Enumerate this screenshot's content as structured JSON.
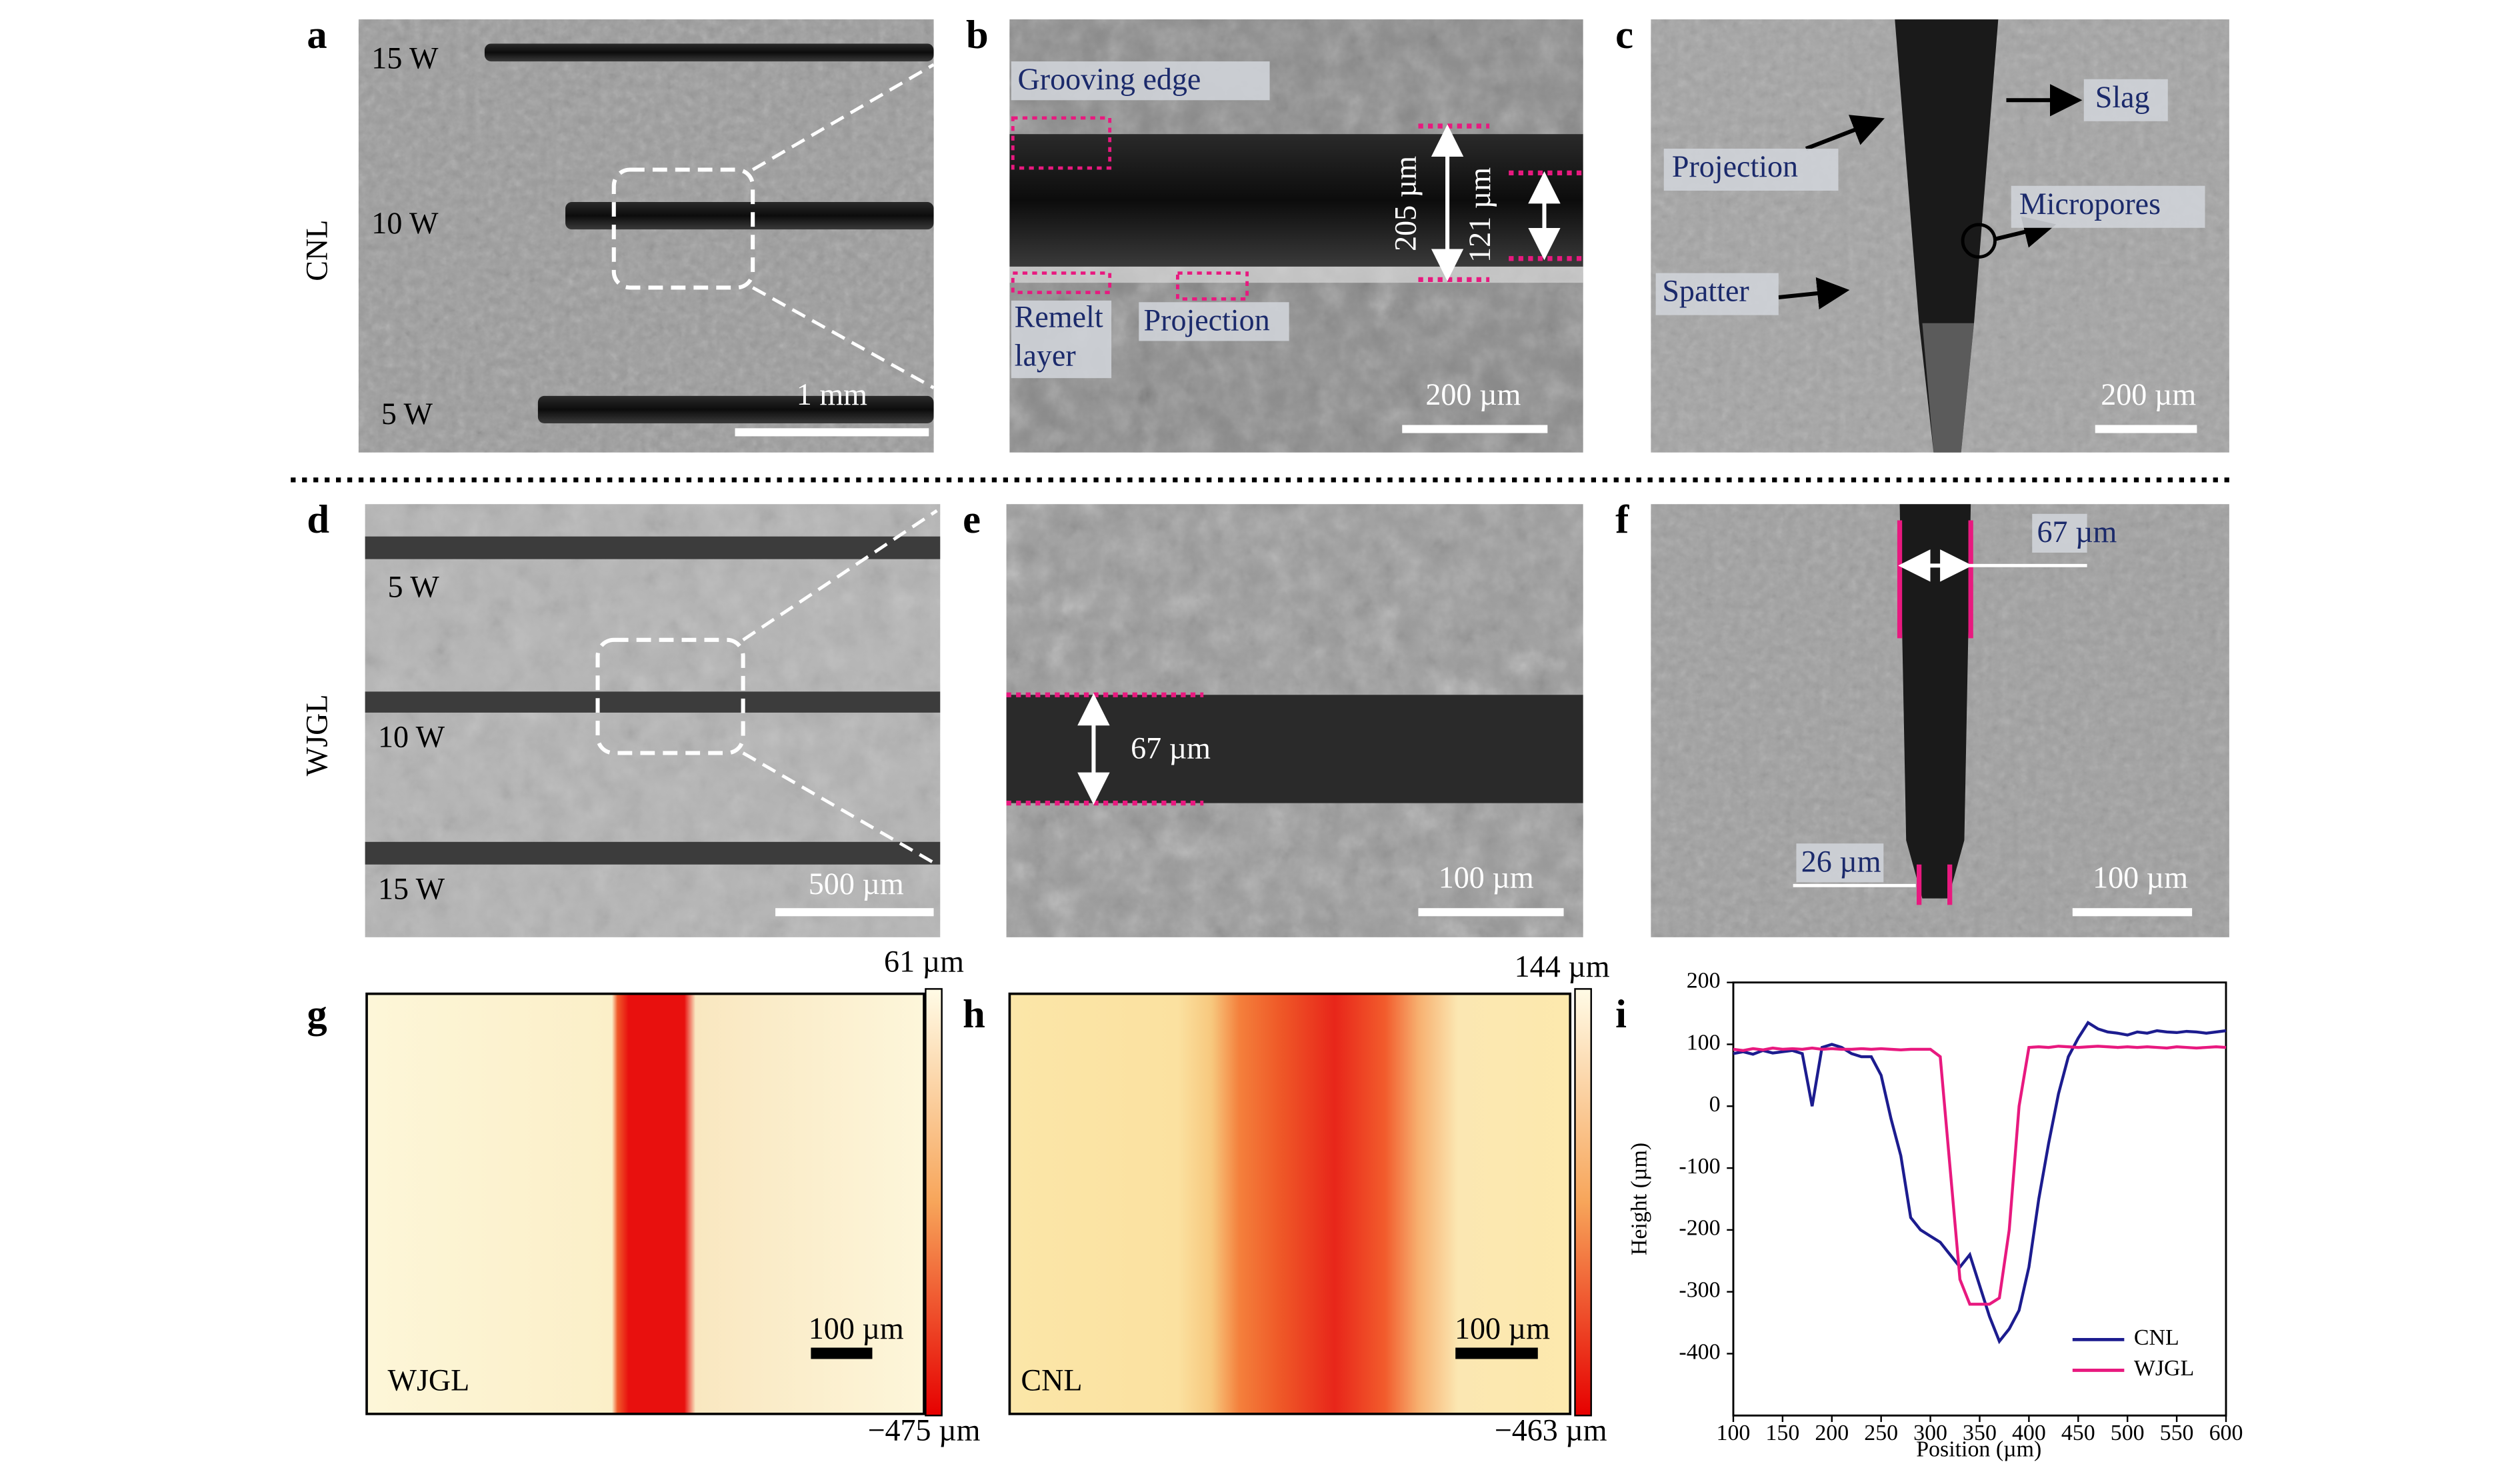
{
  "figure": {
    "a": {
      "letter": "a",
      "side_label": "CNL",
      "power_top": "15 W",
      "power_mid": "10 W",
      "power_bottom": "5 W",
      "scale_bar": "1 mm"
    },
    "b": {
      "letter": "b",
      "grooving_edge": "Grooving edge",
      "remelt_1": "Remelt",
      "remelt_2": "layer",
      "projection": "Projection",
      "depth_total": "205 µm",
      "depth_inner": "121 µm",
      "scale_bar": "200 µm"
    },
    "c": {
      "letter": "c",
      "slag": "Slag",
      "projection": "Projection",
      "micropores": "Micropores",
      "spatter": "Spatter",
      "scale_bar": "200 µm"
    },
    "d": {
      "letter": "d",
      "side_label": "WJGL",
      "power_top": "5 W",
      "power_mid": "10 W",
      "power_bottom": "15 W",
      "scale_bar": "500 µm"
    },
    "e": {
      "letter": "e",
      "width": "67 µm",
      "scale_bar": "100 µm"
    },
    "f": {
      "letter": "f",
      "top_width": "67 µm",
      "bottom_width": "26 µm",
      "scale_bar": "100 µm"
    },
    "g": {
      "letter": "g",
      "label": "WJGL",
      "scale_bar": "100 µm",
      "cbar_max": "61 µm",
      "cbar_min": "−475 µm"
    },
    "h": {
      "letter": "h",
      "label": "CNL",
      "scale_bar": "100 µm",
      "cbar_max": "144 µm",
      "cbar_min": "−463 µm"
    },
    "i": {
      "letter": "i"
    }
  },
  "chart_data": {
    "type": "line",
    "x_label": "Position (µm)",
    "y_label": "Height (µm)",
    "x": [
      100,
      110,
      120,
      130,
      140,
      150,
      160,
      170,
      180,
      190,
      200,
      210,
      220,
      230,
      240,
      250,
      260,
      270,
      280,
      290,
      300,
      310,
      320,
      330,
      340,
      350,
      360,
      370,
      380,
      390,
      400,
      410,
      420,
      430,
      440,
      450,
      460,
      470,
      480,
      490,
      500,
      510,
      520,
      530,
      540,
      550,
      560,
      570,
      580,
      590,
      600
    ],
    "series": [
      {
        "name": "CNL",
        "color": "#1c1c8f",
        "values": [
          85,
          88,
          84,
          90,
          86,
          88,
          90,
          85,
          0,
          95,
          100,
          95,
          85,
          80,
          80,
          50,
          -20,
          -80,
          -180,
          -200,
          -210,
          -220,
          -240,
          -260,
          -240,
          -290,
          -340,
          -380,
          -360,
          -330,
          -260,
          -150,
          -60,
          20,
          80,
          110,
          135,
          125,
          120,
          118,
          115,
          120,
          118,
          122,
          120,
          119,
          121,
          120,
          118,
          120,
          122
        ]
      },
      {
        "name": "WJGL",
        "color": "#e8197f",
        "values": [
          92,
          90,
          93,
          91,
          94,
          92,
          93,
          92,
          94,
          92,
          93,
          92,
          92,
          93,
          92,
          93,
          92,
          91,
          92,
          92,
          92,
          80,
          -100,
          -280,
          -320,
          -320,
          -320,
          -310,
          -200,
          0,
          95,
          96,
          95,
          97,
          96,
          95,
          96,
          97,
          96,
          95,
          96,
          95,
          96,
          95,
          94,
          96,
          95,
          94,
          95,
          96,
          95
        ]
      }
    ],
    "xlim": [
      100,
      600
    ],
    "xticks": [
      100,
      150,
      200,
      250,
      300,
      350,
      400,
      450,
      500,
      550,
      600
    ],
    "ylim": [
      -500,
      200
    ],
    "yticks": [
      200,
      100,
      0,
      -100,
      -200,
      -300,
      -400
    ],
    "legend": "lower right"
  }
}
